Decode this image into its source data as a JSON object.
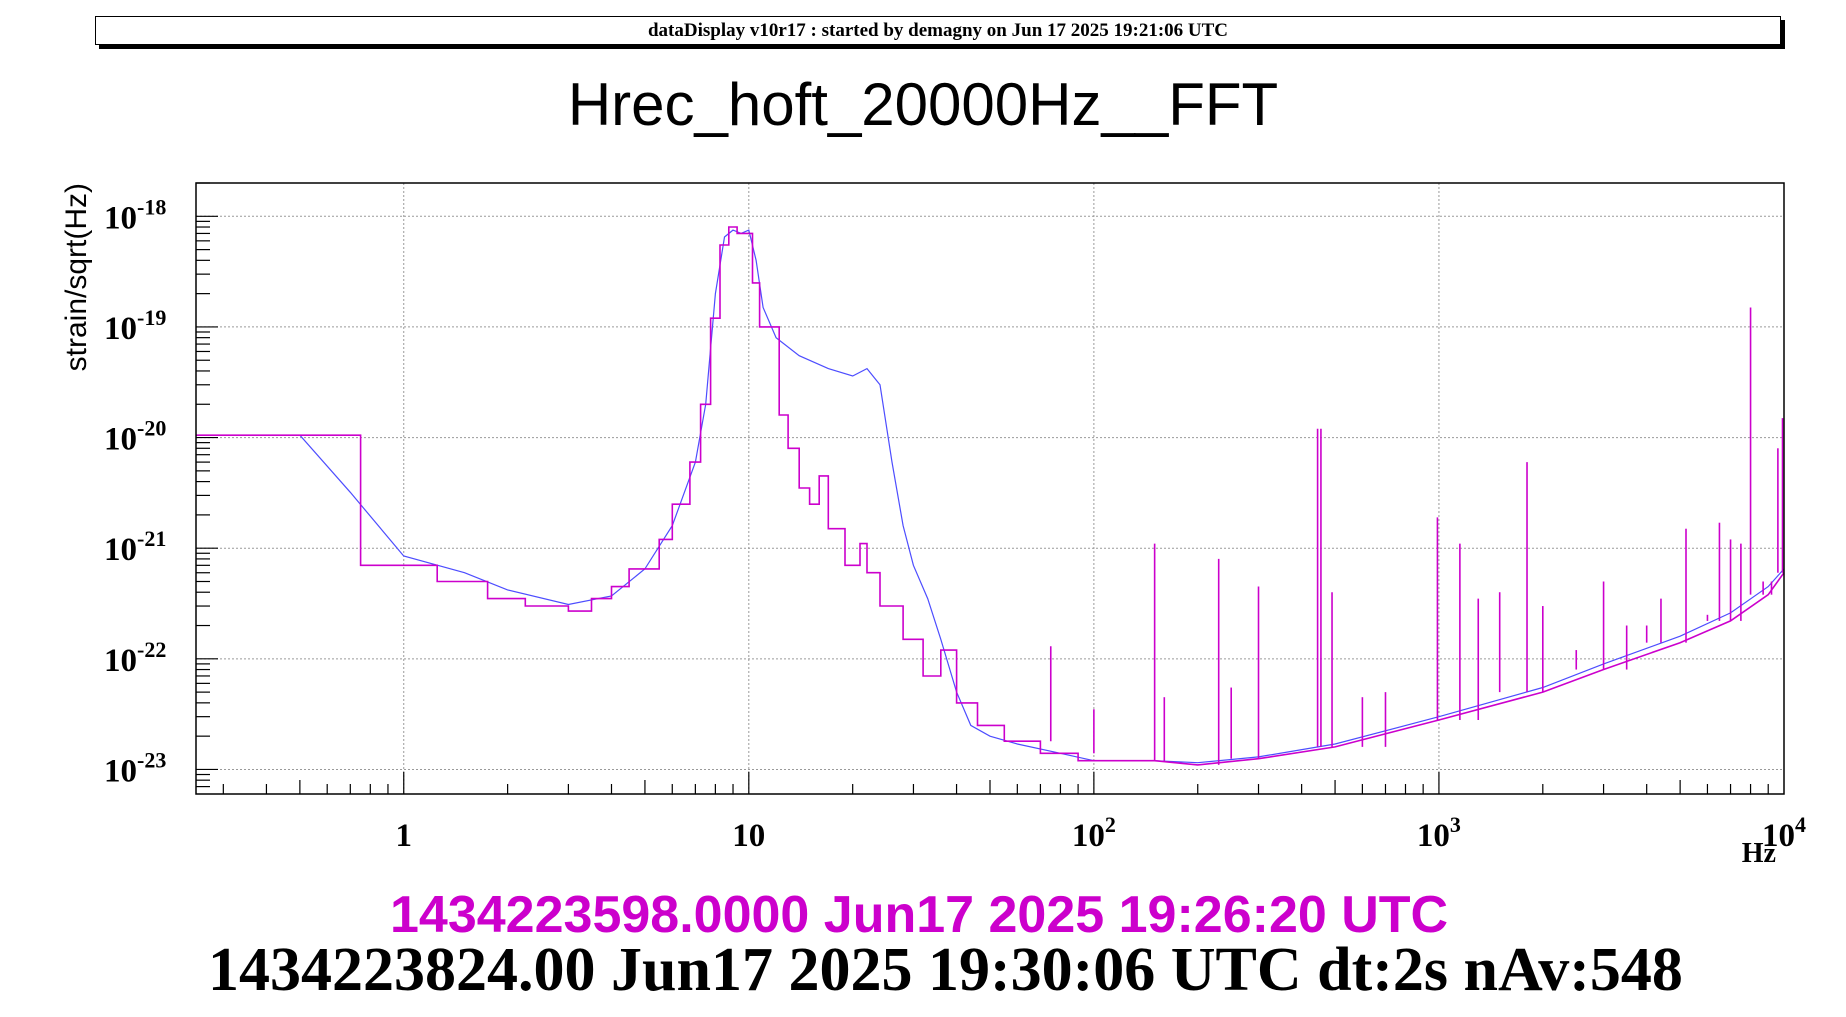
{
  "header": {
    "text": "dataDisplay v10r17 : started by demagny on Jun 17 2025 19:21:06 UTC"
  },
  "title": "Hrec_hoft_20000Hz__FFT",
  "timestamps": {
    "magenta": "1434223598.0000 Jun17 2025 19:26:20 UTC",
    "black": "1434223824.00 Jun17 2025 19:30:06 UTC dt:2s nAv:548"
  },
  "chart_data": {
    "type": "line",
    "title": "Hrec_hoft_20000Hz__FFT",
    "xlabel": "Hz",
    "ylabel": "strain/sqrt(Hz)",
    "xscale": "log",
    "yscale": "log",
    "xlim": [
      0.25,
      10000
    ],
    "ylim": [
      6e-24,
      2e-18
    ],
    "grid": true,
    "x_tick_labels": [
      {
        "base": "1",
        "exp": ""
      },
      {
        "base": "10",
        "exp": ""
      },
      {
        "base": "10",
        "exp": "2"
      },
      {
        "base": "10",
        "exp": "3"
      },
      {
        "base": "10",
        "exp": "4"
      }
    ],
    "y_tick_labels": [
      {
        "base": "10",
        "exp": "-18"
      },
      {
        "base": "10",
        "exp": "-19"
      },
      {
        "base": "10",
        "exp": "-20"
      },
      {
        "base": "10",
        "exp": "-21"
      },
      {
        "base": "10",
        "exp": "-22"
      },
      {
        "base": "10",
        "exp": "-23"
      }
    ],
    "series": [
      {
        "color": "#4d4dff",
        "points": [
          [
            0.25,
            1.05e-20
          ],
          [
            0.5,
            1.05e-20
          ],
          [
            0.7,
            3.2e-21
          ],
          [
            1.0,
            8.5e-22
          ],
          [
            1.5,
            6e-22
          ],
          [
            2.0,
            4.2e-22
          ],
          [
            3.0,
            3.1e-22
          ],
          [
            4.0,
            3.7e-22
          ],
          [
            5.0,
            6.5e-22
          ],
          [
            6.0,
            1.6e-21
          ],
          [
            7.0,
            6e-21
          ],
          [
            7.5,
            2e-20
          ],
          [
            8.0,
            2e-19
          ],
          [
            8.5,
            6.5e-19
          ],
          [
            9.0,
            7.5e-19
          ],
          [
            9.5,
            7e-19
          ],
          [
            10.0,
            7.5e-19
          ],
          [
            10.5,
            4e-19
          ],
          [
            11.0,
            1.5e-19
          ],
          [
            12.0,
            8e-20
          ],
          [
            14.0,
            5.5e-20
          ],
          [
            17.0,
            4.2e-20
          ],
          [
            20.0,
            3.6e-20
          ],
          [
            22.0,
            4.2e-20
          ],
          [
            24.0,
            3e-20
          ],
          [
            26.0,
            6e-21
          ],
          [
            28.0,
            1.6e-21
          ],
          [
            30.0,
            7e-22
          ],
          [
            33.0,
            3.5e-22
          ],
          [
            36.0,
            1.5e-22
          ],
          [
            40.0,
            5e-23
          ],
          [
            44.0,
            2.5e-23
          ],
          [
            50.0,
            2e-23
          ],
          [
            60.0,
            1.7e-23
          ],
          [
            80.0,
            1.4e-23
          ],
          [
            100.0,
            1.2e-23
          ],
          [
            150.0,
            1.2e-23
          ],
          [
            200.0,
            1.15e-23
          ],
          [
            300.0,
            1.3e-23
          ],
          [
            500.0,
            1.7e-23
          ],
          [
            1000.0,
            3e-23
          ],
          [
            2000.0,
            5.5e-23
          ],
          [
            3000.0,
            9e-23
          ],
          [
            5000.0,
            1.6e-22
          ],
          [
            7000.0,
            2.6e-22
          ],
          [
            9000.0,
            4.5e-22
          ],
          [
            10000.0,
            6.5e-22
          ]
        ]
      },
      {
        "color": "#cc00cc",
        "points": [
          [
            0.25,
            1.05e-20
          ],
          [
            0.75,
            1.05e-20
          ],
          [
            0.75,
            7e-22
          ],
          [
            1.25,
            7e-22
          ],
          [
            1.25,
            5e-22
          ],
          [
            1.75,
            5e-22
          ],
          [
            1.75,
            3.5e-22
          ],
          [
            2.25,
            3.5e-22
          ],
          [
            2.25,
            3e-22
          ],
          [
            3.0,
            3e-22
          ],
          [
            3.0,
            2.7e-22
          ],
          [
            3.5,
            2.7e-22
          ],
          [
            3.5,
            3.5e-22
          ],
          [
            4.0,
            3.5e-22
          ],
          [
            4.0,
            4.5e-22
          ],
          [
            4.5,
            4.5e-22
          ],
          [
            4.5,
            6.5e-22
          ],
          [
            5.5,
            6.5e-22
          ],
          [
            5.5,
            1.2e-21
          ],
          [
            6.0,
            1.2e-21
          ],
          [
            6.0,
            2.5e-21
          ],
          [
            6.75,
            2.5e-21
          ],
          [
            6.75,
            6e-21
          ],
          [
            7.25,
            6e-21
          ],
          [
            7.25,
            2e-20
          ],
          [
            7.75,
            2e-20
          ],
          [
            7.75,
            1.2e-19
          ],
          [
            8.25,
            1.2e-19
          ],
          [
            8.25,
            5.5e-19
          ],
          [
            8.75,
            5.5e-19
          ],
          [
            8.75,
            8e-19
          ],
          [
            9.25,
            8e-19
          ],
          [
            9.25,
            7e-19
          ],
          [
            10.25,
            7e-19
          ],
          [
            10.25,
            2.5e-19
          ],
          [
            10.75,
            2.5e-19
          ],
          [
            10.75,
            1e-19
          ],
          [
            12.25,
            1e-19
          ],
          [
            12.25,
            1.6e-20
          ],
          [
            13.0,
            1.6e-20
          ],
          [
            13.0,
            8e-21
          ],
          [
            14.0,
            8e-21
          ],
          [
            14.0,
            3.5e-21
          ],
          [
            15.0,
            3.5e-21
          ],
          [
            15.0,
            2.5e-21
          ],
          [
            16.0,
            2.5e-21
          ],
          [
            16.0,
            4.5e-21
          ],
          [
            17.0,
            4.5e-21
          ],
          [
            17.0,
            1.5e-21
          ],
          [
            19.0,
            1.5e-21
          ],
          [
            19.0,
            7e-22
          ],
          [
            21.0,
            7e-22
          ],
          [
            21.0,
            1.1e-21
          ],
          [
            22.0,
            1.1e-21
          ],
          [
            22.0,
            6e-22
          ],
          [
            24.0,
            6e-22
          ],
          [
            24.0,
            3e-22
          ],
          [
            28.0,
            3e-22
          ],
          [
            28.0,
            1.5e-22
          ],
          [
            32.0,
            1.5e-22
          ],
          [
            32.0,
            7e-23
          ],
          [
            36.0,
            7e-23
          ],
          [
            36.0,
            1.2e-22
          ],
          [
            40.0,
            1.2e-22
          ],
          [
            40.0,
            4e-23
          ],
          [
            46.0,
            4e-23
          ],
          [
            46.0,
            2.5e-23
          ],
          [
            55.0,
            2.5e-23
          ],
          [
            55.0,
            1.8e-23
          ],
          [
            70.0,
            1.8e-23
          ],
          [
            70.0,
            1.4e-23
          ],
          [
            90.0,
            1.4e-23
          ],
          [
            90.0,
            1.2e-23
          ],
          [
            150.0,
            1.2e-23
          ],
          [
            200.0,
            1.1e-23
          ],
          [
            300.0,
            1.25e-23
          ],
          [
            500.0,
            1.6e-23
          ],
          [
            1000.0,
            2.8e-23
          ],
          [
            2000.0,
            5e-23
          ],
          [
            3000.0,
            8e-23
          ],
          [
            5000.0,
            1.4e-22
          ],
          [
            7000.0,
            2.2e-22
          ],
          [
            9000.0,
            3.8e-22
          ],
          [
            10000.0,
            6e-22
          ]
        ],
        "spikes": [
          [
            75,
            1.3e-22
          ],
          [
            100,
            3.5e-23
          ],
          [
            150,
            1.1e-21
          ],
          [
            160,
            4.5e-23
          ],
          [
            230,
            8e-22
          ],
          [
            250,
            5.5e-23
          ],
          [
            300,
            4.5e-22
          ],
          [
            445,
            1.2e-20
          ],
          [
            455,
            1.2e-20
          ],
          [
            490,
            4e-22
          ],
          [
            600,
            4.5e-23
          ],
          [
            700,
            5e-23
          ],
          [
            990,
            1.9e-21
          ],
          [
            1150,
            1.1e-21
          ],
          [
            1300,
            3.5e-22
          ],
          [
            1500,
            4e-22
          ],
          [
            1800,
            6e-21
          ],
          [
            2000,
            3e-22
          ],
          [
            2500,
            1.2e-22
          ],
          [
            3000,
            5e-22
          ],
          [
            3500,
            2e-22
          ],
          [
            4000,
            2e-22
          ],
          [
            4400,
            3.5e-22
          ],
          [
            5200,
            1.5e-21
          ],
          [
            6000,
            2.5e-22
          ],
          [
            6500,
            1.7e-21
          ],
          [
            7000,
            1.2e-21
          ],
          [
            7500,
            1.1e-21
          ],
          [
            8000,
            1.5e-19
          ],
          [
            8700,
            5e-22
          ],
          [
            9200,
            5e-22
          ],
          [
            9600,
            8e-21
          ],
          [
            9900,
            1.5e-20
          ]
        ]
      }
    ]
  }
}
